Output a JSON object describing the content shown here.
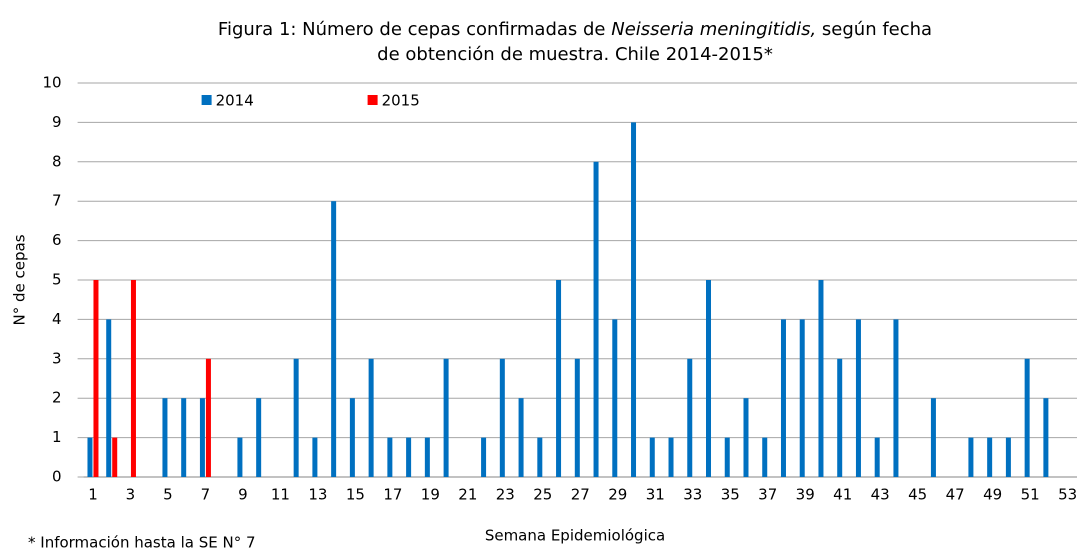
{
  "chart_data": {
    "type": "bar",
    "title": {
      "line1": [
        "Figura 1: Número de cepas confirmadas de ",
        "Neisseria meningitidis,",
        " según fecha"
      ],
      "line2": "de obtención de muestra. Chile 2014-2015*"
    },
    "x_label": "Semana Epidemiológica",
    "y_label": "N° de cepas",
    "footnote": "* Información hasta la SE N° 7",
    "categories": [
      "1",
      null,
      "3",
      null,
      "5",
      null,
      "7",
      null,
      "9",
      null,
      "11",
      null,
      "13",
      null,
      "15",
      null,
      "17",
      null,
      "19",
      null,
      "21",
      null,
      "23",
      null,
      "25",
      null,
      "27",
      null,
      "29",
      null,
      "31",
      null,
      "33",
      null,
      "35",
      null,
      "37",
      null,
      "39",
      null,
      "41",
      null,
      "43",
      null,
      "45",
      null,
      "47",
      null,
      "49",
      null,
      "51",
      null,
      "53"
    ],
    "series": [
      {
        "name": "2014",
        "color": "#0070c0",
        "values": [
          1,
          4,
          0,
          0,
          2,
          2,
          2,
          0,
          1,
          2,
          0,
          3,
          1,
          7,
          2,
          3,
          1,
          1,
          1,
          3,
          0,
          1,
          3,
          2,
          1,
          5,
          3,
          8,
          4,
          9,
          1,
          1,
          3,
          5,
          1,
          2,
          1,
          4,
          4,
          5,
          3,
          4,
          1,
          4,
          0,
          2,
          0,
          1,
          1,
          1,
          3,
          2,
          0
        ]
      },
      {
        "name": "2015",
        "color": "#ff0000",
        "values": [
          5,
          1,
          5,
          0,
          0,
          0,
          3,
          null,
          null,
          null,
          null,
          null,
          null,
          null,
          null,
          null,
          null,
          null,
          null,
          null,
          null,
          null,
          null,
          null,
          null,
          null,
          null,
          null,
          null,
          null,
          null,
          null,
          null,
          null,
          null,
          null,
          null,
          null,
          null,
          null,
          null,
          null,
          null,
          null,
          null,
          null,
          null,
          null,
          null,
          null,
          null,
          null,
          null
        ]
      }
    ],
    "ylim": [
      0,
      10
    ],
    "yticks": [
      0,
      1,
      2,
      3,
      4,
      5,
      6,
      7,
      8,
      9,
      10
    ],
    "grid": true,
    "legend": "top-left"
  }
}
